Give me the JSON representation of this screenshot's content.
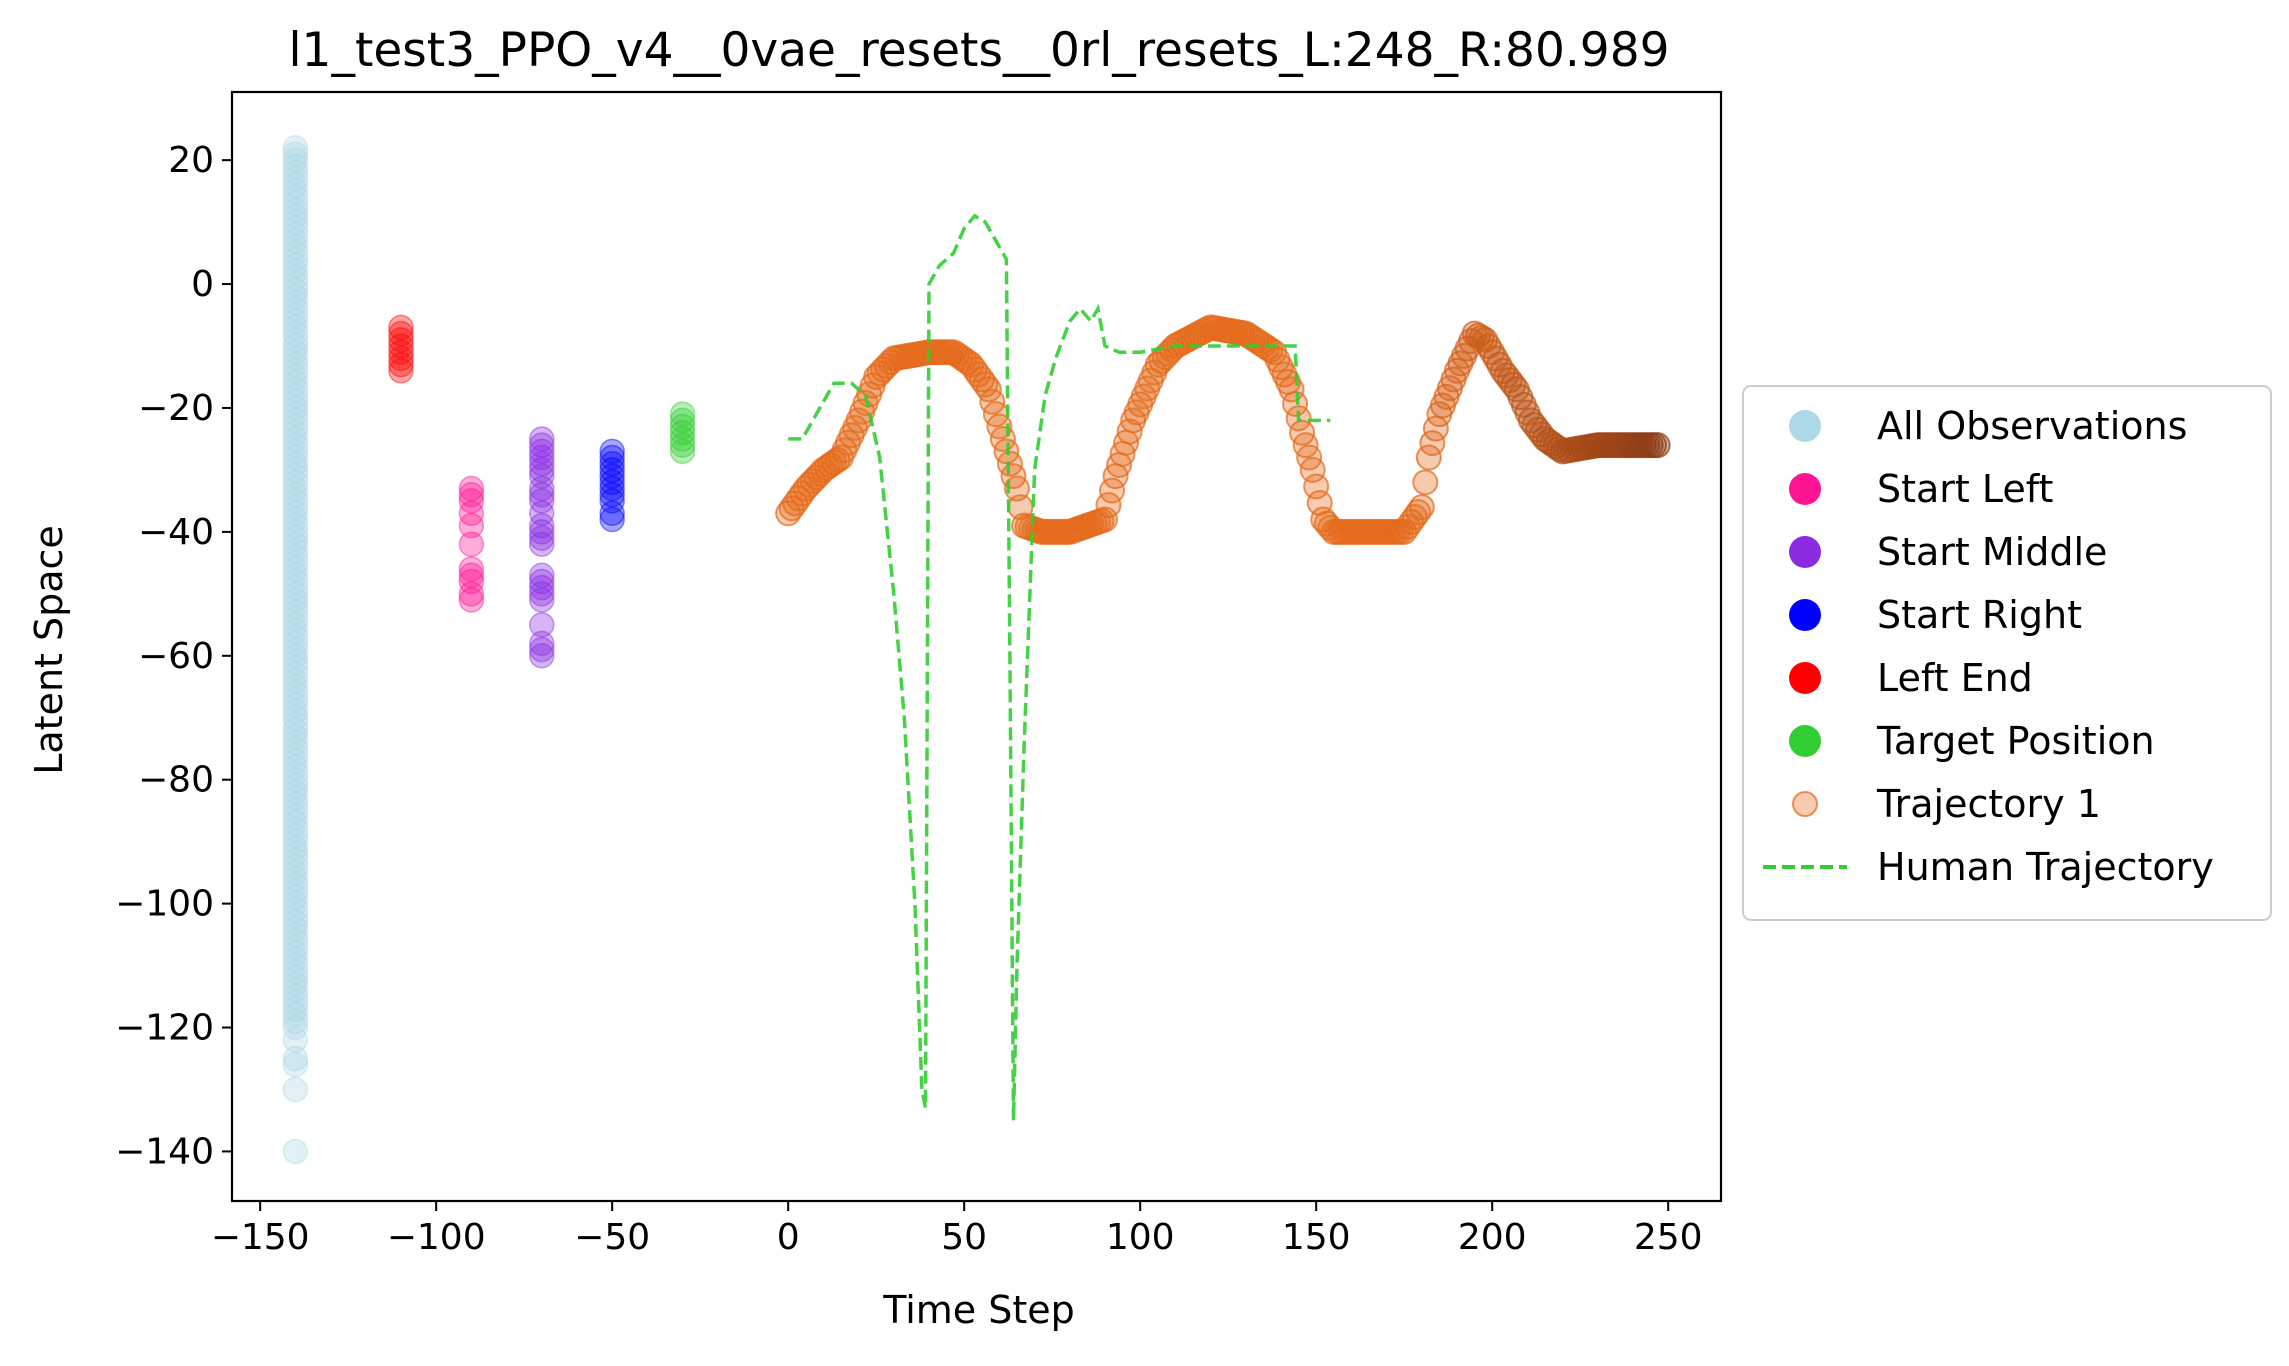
{
  "chart_data": {
    "type": "scatter",
    "title": "l1_test3_PPO_v4__0vae_resets__0rl_resets_L:248_R:80.989",
    "xlabel": "Time Step",
    "ylabel": "Latent Space",
    "xlim": [
      -158,
      265
    ],
    "ylim": [
      -148,
      31
    ],
    "xticks": [
      -150,
      -100,
      -50,
      0,
      50,
      100,
      150,
      200,
      250
    ],
    "xtick_labels": [
      "−150",
      "−100",
      "−50",
      "0",
      "50",
      "100",
      "150",
      "200",
      "250"
    ],
    "yticks": [
      20,
      0,
      -20,
      -40,
      -60,
      -80,
      -100,
      -120,
      -140
    ],
    "ytick_labels": [
      "20",
      "0",
      "−20",
      "−40",
      "−60",
      "−80",
      "−100",
      "−120",
      "−140"
    ],
    "grid": false,
    "legend_position": "outside-right",
    "series": [
      {
        "name": "All Observations",
        "kind": "scatter-column",
        "color": "#add8e6",
        "x": -140,
        "y_values": [
          22,
          21,
          20,
          19,
          18,
          17,
          16,
          15,
          14,
          13,
          12,
          11,
          10,
          9,
          8,
          7,
          6,
          5,
          4,
          3,
          2,
          1,
          0,
          -1,
          -2,
          -3,
          -4,
          -5,
          -6,
          -7,
          -8,
          -9,
          -10,
          -11,
          -12,
          -13,
          -14,
          -15,
          -16,
          -17,
          -18,
          -19,
          -20,
          -21,
          -22,
          -23,
          -24,
          -25,
          -26,
          -27,
          -28,
          -29,
          -30,
          -31,
          -32,
          -33,
          -34,
          -35,
          -36,
          -37,
          -38,
          -39,
          -40,
          -41,
          -42,
          -43,
          -44,
          -45,
          -46,
          -47,
          -48,
          -49,
          -50,
          -51,
          -52,
          -53,
          -54,
          -55,
          -56,
          -57,
          -58,
          -59,
          -60,
          -61,
          -62,
          -63,
          -64,
          -65,
          -66,
          -67,
          -68,
          -69,
          -70,
          -71,
          -72,
          -73,
          -74,
          -75,
          -76,
          -77,
          -78,
          -79,
          -80,
          -81,
          -82,
          -83,
          -84,
          -85,
          -86,
          -87,
          -88,
          -89,
          -90,
          -91,
          -92,
          -93,
          -94,
          -95,
          -96,
          -97,
          -98,
          -99,
          -100,
          -101,
          -102,
          -103,
          -104,
          -105,
          -106,
          -107,
          -108,
          -109,
          -110,
          -111,
          -112,
          -113,
          -114,
          -115,
          -116,
          -117,
          -118,
          -119,
          -120,
          -122,
          -125,
          -126,
          -130,
          -140
        ]
      },
      {
        "name": "Start Left",
        "kind": "scatter-column",
        "color": "#ff1493",
        "x": -90,
        "y_values": [
          -33,
          -34,
          -35,
          -37,
          -39,
          -42,
          -46,
          -47,
          -48,
          -50,
          -51
        ]
      },
      {
        "name": "Start Middle",
        "kind": "scatter-column",
        "color": "#8a2be2",
        "x": -70,
        "y_values": [
          -25,
          -26,
          -27,
          -28,
          -29,
          -30,
          -31,
          -33,
          -34,
          -35,
          -37,
          -39,
          -40,
          -41,
          -42,
          -47,
          -48,
          -49,
          -50,
          -51,
          -55,
          -58,
          -59,
          -60
        ]
      },
      {
        "name": "Start Right",
        "kind": "scatter-column",
        "color": "#0000ff",
        "x": -50,
        "y_values": [
          -27,
          -28,
          -29,
          -30,
          -31,
          -32,
          -33,
          -34,
          -35,
          -37,
          -38
        ]
      },
      {
        "name": "Left End",
        "kind": "scatter-column",
        "color": "#ff0000",
        "x": -110,
        "y_values": [
          -7,
          -8,
          -9,
          -10,
          -11,
          -12,
          -13,
          -14
        ]
      },
      {
        "name": "Target Position",
        "kind": "scatter-column",
        "color": "#32cd32",
        "x": -30,
        "y_values": [
          -21,
          -22,
          -23,
          -24,
          -25,
          -26,
          -27
        ]
      },
      {
        "name": "Trajectory 1",
        "kind": "scatter-path",
        "color_start": "#e66a1a",
        "color_end": "#8b3a14",
        "x_range": [
          0,
          247
        ],
        "anchors": [
          [
            0,
            -37
          ],
          [
            5,
            -33
          ],
          [
            10,
            -30
          ],
          [
            15,
            -28
          ],
          [
            20,
            -22
          ],
          [
            25,
            -15
          ],
          [
            30,
            -12
          ],
          [
            40,
            -11
          ],
          [
            47,
            -11
          ],
          [
            52,
            -13
          ],
          [
            57,
            -17
          ],
          [
            62,
            -27
          ],
          [
            65,
            -33
          ],
          [
            67,
            -39
          ],
          [
            72,
            -40
          ],
          [
            80,
            -40
          ],
          [
            90,
            -38
          ],
          [
            93,
            -31
          ],
          [
            98,
            -22
          ],
          [
            105,
            -13
          ],
          [
            110,
            -10
          ],
          [
            120,
            -7
          ],
          [
            130,
            -8
          ],
          [
            138,
            -11
          ],
          [
            143,
            -17
          ],
          [
            146,
            -24
          ],
          [
            149,
            -30
          ],
          [
            152,
            -38
          ],
          [
            155,
            -40
          ],
          [
            165,
            -40
          ],
          [
            175,
            -40
          ],
          [
            180,
            -36
          ],
          [
            182,
            -28
          ],
          [
            185,
            -21
          ],
          [
            190,
            -14
          ],
          [
            195,
            -8
          ],
          [
            198,
            -9
          ],
          [
            203,
            -14
          ],
          [
            207,
            -17
          ],
          [
            211,
            -22
          ],
          [
            215,
            -25
          ],
          [
            220,
            -27
          ],
          [
            230,
            -26
          ],
          [
            240,
            -26
          ],
          [
            247,
            -26
          ]
        ]
      },
      {
        "name": "Human Trajectory",
        "kind": "line",
        "color": "#32cd32",
        "dash": "dashed",
        "points": [
          [
            0,
            -25
          ],
          [
            4,
            -25
          ],
          [
            8,
            -21
          ],
          [
            13,
            -16
          ],
          [
            18,
            -16
          ],
          [
            22,
            -18
          ],
          [
            26,
            -28
          ],
          [
            30,
            -50
          ],
          [
            33,
            -70
          ],
          [
            36,
            -100
          ],
          [
            38,
            -130
          ],
          [
            39,
            -133
          ],
          [
            40,
            0
          ],
          [
            43,
            3
          ],
          [
            47,
            5
          ],
          [
            50,
            9
          ],
          [
            53,
            11
          ],
          [
            56,
            10
          ],
          [
            60,
            6
          ],
          [
            62,
            4
          ],
          [
            63,
            -60
          ],
          [
            64,
            -135
          ],
          [
            65,
            -110
          ],
          [
            67,
            -75
          ],
          [
            70,
            -30
          ],
          [
            73,
            -18
          ],
          [
            76,
            -12
          ],
          [
            80,
            -6
          ],
          [
            83,
            -4
          ],
          [
            86,
            -6
          ],
          [
            88,
            -4
          ],
          [
            90,
            -10
          ],
          [
            94,
            -11
          ],
          [
            100,
            -11
          ],
          [
            110,
            -10
          ],
          [
            120,
            -10
          ],
          [
            130,
            -10
          ],
          [
            140,
            -10
          ],
          [
            144,
            -10
          ],
          [
            145,
            -22
          ],
          [
            150,
            -22
          ],
          [
            154,
            -22
          ]
        ]
      }
    ]
  }
}
